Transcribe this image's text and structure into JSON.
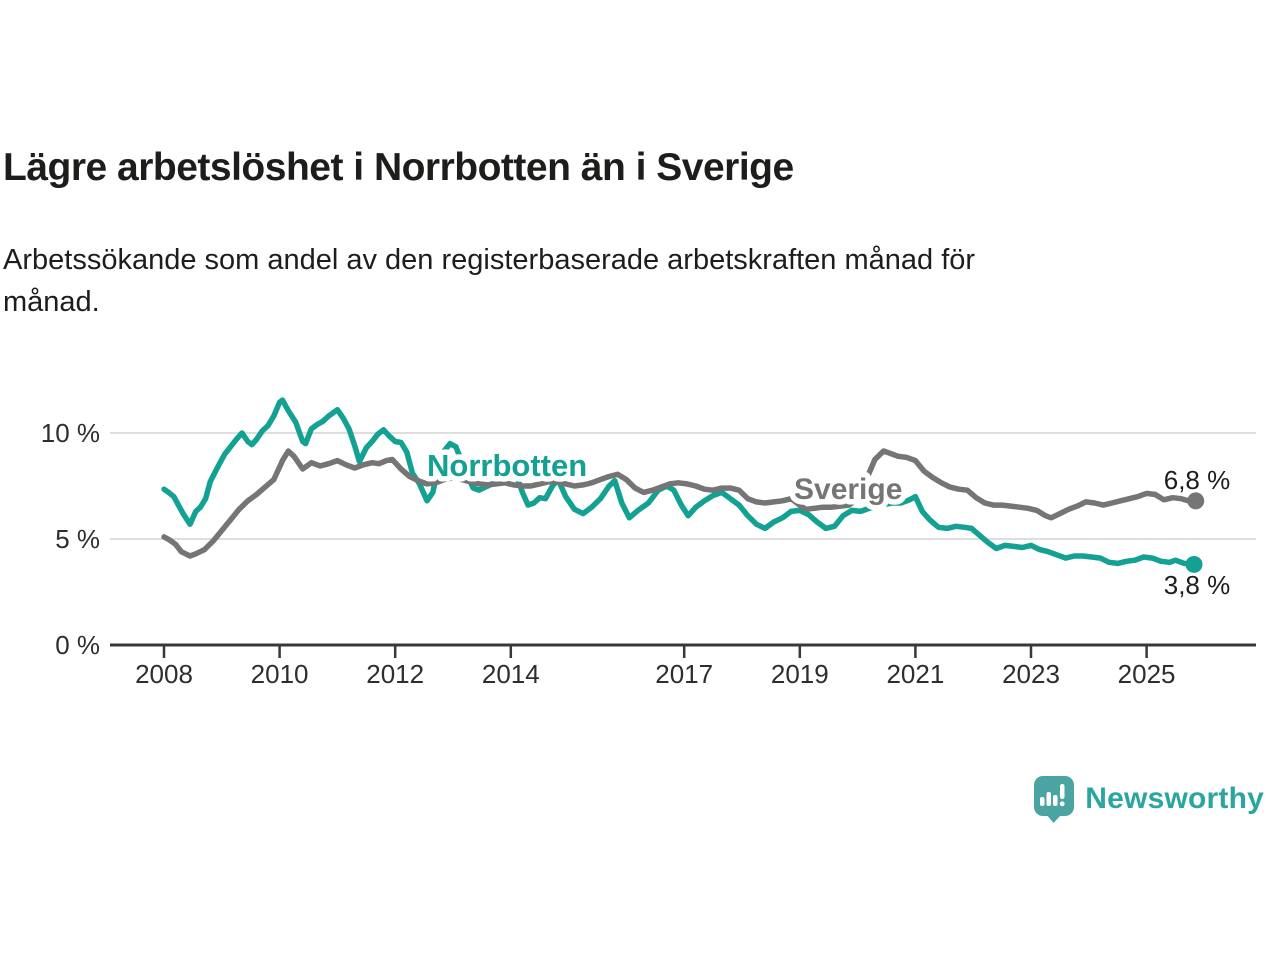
{
  "header": {
    "title": "Lägre arbetslöshet i Norrbotten än i Sverige",
    "subtitle": "Arbetssökande som andel av den registerbaserade arbetskraften månad för månad."
  },
  "chart_data": {
    "type": "line",
    "title": "Lägre arbetslöshet i Norrbotten än i Sverige",
    "subtitle": "Arbetssökande som andel av den registerbaserade arbetskraften månad för månad.",
    "unit": "%",
    "grid": true,
    "legend_position": "inline-labels-on-lines",
    "x_axis": {
      "range": [
        2007.85,
        2026.1
      ],
      "ticks": [
        {
          "value": 2008,
          "label": "2008"
        },
        {
          "value": 2010,
          "label": "2010"
        },
        {
          "value": 2012,
          "label": "2012"
        },
        {
          "value": 2014,
          "label": "2014"
        },
        {
          "value": 2017,
          "label": "2017"
        },
        {
          "value": 2019,
          "label": "2019"
        },
        {
          "value": 2021,
          "label": "2021"
        },
        {
          "value": 2023,
          "label": "2023"
        },
        {
          "value": 2025,
          "label": "2025"
        }
      ]
    },
    "y_axis": {
      "range": [
        0,
        12
      ],
      "ticks": [
        {
          "value": 0,
          "label": "0 %"
        },
        {
          "value": 5,
          "label": "5 %"
        },
        {
          "value": 10,
          "label": "10 %"
        }
      ]
    },
    "series": [
      {
        "name": "Norrbotten",
        "label": "Norrbotten",
        "color": "#12a192",
        "end_value_label": "3,8 %",
        "end_value": 3.8,
        "points": [
          [
            2008.0,
            7.35
          ],
          [
            2008.08,
            7.2
          ],
          [
            2008.17,
            7.0
          ],
          [
            2008.25,
            6.6
          ],
          [
            2008.33,
            6.2
          ],
          [
            2008.45,
            5.7
          ],
          [
            2008.55,
            6.3
          ],
          [
            2008.63,
            6.5
          ],
          [
            2008.72,
            6.9
          ],
          [
            2008.8,
            7.7
          ],
          [
            2008.95,
            8.5
          ],
          [
            2009.05,
            9.0
          ],
          [
            2009.15,
            9.35
          ],
          [
            2009.25,
            9.7
          ],
          [
            2009.35,
            10.0
          ],
          [
            2009.45,
            9.6
          ],
          [
            2009.52,
            9.45
          ],
          [
            2009.6,
            9.7
          ],
          [
            2009.7,
            10.1
          ],
          [
            2009.8,
            10.35
          ],
          [
            2009.9,
            10.8
          ],
          [
            2010.0,
            11.45
          ],
          [
            2010.05,
            11.55
          ],
          [
            2010.15,
            11.05
          ],
          [
            2010.28,
            10.5
          ],
          [
            2010.4,
            9.6
          ],
          [
            2010.45,
            9.5
          ],
          [
            2010.55,
            10.2
          ],
          [
            2010.65,
            10.4
          ],
          [
            2010.75,
            10.55
          ],
          [
            2010.85,
            10.8
          ],
          [
            2011.0,
            11.1
          ],
          [
            2011.1,
            10.7
          ],
          [
            2011.2,
            10.2
          ],
          [
            2011.3,
            9.4
          ],
          [
            2011.38,
            8.65
          ],
          [
            2011.5,
            9.3
          ],
          [
            2011.6,
            9.6
          ],
          [
            2011.7,
            9.95
          ],
          [
            2011.8,
            10.15
          ],
          [
            2011.9,
            9.85
          ],
          [
            2012.0,
            9.6
          ],
          [
            2012.1,
            9.55
          ],
          [
            2012.2,
            9.1
          ],
          [
            2012.3,
            8.1
          ],
          [
            2012.42,
            7.6
          ],
          [
            2012.55,
            6.8
          ],
          [
            2012.65,
            7.2
          ],
          [
            2012.8,
            9.0
          ],
          [
            2012.95,
            9.5
          ],
          [
            2013.05,
            9.35
          ],
          [
            2013.2,
            8.3
          ],
          [
            2013.35,
            7.4
          ],
          [
            2013.45,
            7.3
          ],
          [
            2013.6,
            7.5
          ],
          [
            2013.75,
            7.7
          ],
          [
            2013.9,
            7.9
          ],
          [
            2014.0,
            8.0
          ],
          [
            2014.12,
            7.85
          ],
          [
            2014.2,
            7.2
          ],
          [
            2014.3,
            6.6
          ],
          [
            2014.4,
            6.7
          ],
          [
            2014.5,
            6.95
          ],
          [
            2014.6,
            6.9
          ],
          [
            2014.72,
            7.5
          ],
          [
            2014.82,
            7.8
          ],
          [
            2014.95,
            7.0
          ],
          [
            2015.1,
            6.4
          ],
          [
            2015.25,
            6.2
          ],
          [
            2015.4,
            6.5
          ],
          [
            2015.55,
            6.9
          ],
          [
            2015.7,
            7.5
          ],
          [
            2015.8,
            7.75
          ],
          [
            2015.92,
            6.7
          ],
          [
            2016.05,
            6.0
          ],
          [
            2016.2,
            6.35
          ],
          [
            2016.38,
            6.7
          ],
          [
            2016.55,
            7.3
          ],
          [
            2016.7,
            7.5
          ],
          [
            2016.82,
            7.3
          ],
          [
            2016.95,
            6.6
          ],
          [
            2017.07,
            6.1
          ],
          [
            2017.2,
            6.5
          ],
          [
            2017.35,
            6.8
          ],
          [
            2017.5,
            7.05
          ],
          [
            2017.65,
            7.2
          ],
          [
            2017.8,
            6.9
          ],
          [
            2017.95,
            6.6
          ],
          [
            2018.1,
            6.1
          ],
          [
            2018.25,
            5.7
          ],
          [
            2018.4,
            5.5
          ],
          [
            2018.55,
            5.8
          ],
          [
            2018.7,
            6.0
          ],
          [
            2018.85,
            6.3
          ],
          [
            2019.0,
            6.35
          ],
          [
            2019.15,
            6.15
          ],
          [
            2019.3,
            5.8
          ],
          [
            2019.45,
            5.5
          ],
          [
            2019.6,
            5.6
          ],
          [
            2019.75,
            6.1
          ],
          [
            2019.9,
            6.35
          ],
          [
            2020.05,
            6.3
          ],
          [
            2020.2,
            6.45
          ],
          [
            2020.4,
            6.6
          ],
          [
            2020.6,
            6.7
          ],
          [
            2020.75,
            6.7
          ],
          [
            2020.9,
            6.85
          ],
          [
            2021.0,
            7.0
          ],
          [
            2021.12,
            6.3
          ],
          [
            2021.25,
            5.9
          ],
          [
            2021.4,
            5.55
          ],
          [
            2021.55,
            5.5
          ],
          [
            2021.7,
            5.6
          ],
          [
            2021.85,
            5.55
          ],
          [
            2021.97,
            5.5
          ],
          [
            2022.1,
            5.2
          ],
          [
            2022.25,
            4.85
          ],
          [
            2022.4,
            4.55
          ],
          [
            2022.55,
            4.7
          ],
          [
            2022.7,
            4.65
          ],
          [
            2022.85,
            4.6
          ],
          [
            2023.0,
            4.7
          ],
          [
            2023.15,
            4.5
          ],
          [
            2023.3,
            4.4
          ],
          [
            2023.45,
            4.25
          ],
          [
            2023.6,
            4.1
          ],
          [
            2023.75,
            4.2
          ],
          [
            2023.9,
            4.2
          ],
          [
            2024.05,
            4.15
          ],
          [
            2024.2,
            4.1
          ],
          [
            2024.35,
            3.9
          ],
          [
            2024.5,
            3.85
          ],
          [
            2024.65,
            3.95
          ],
          [
            2024.8,
            4.0
          ],
          [
            2024.95,
            4.15
          ],
          [
            2025.1,
            4.1
          ],
          [
            2025.25,
            3.95
          ],
          [
            2025.4,
            3.9
          ],
          [
            2025.5,
            4.0
          ],
          [
            2025.65,
            3.85
          ],
          [
            2025.82,
            3.8
          ]
        ]
      },
      {
        "name": "Sverige",
        "label": "Sverige",
        "color": "#757575",
        "end_value_label": "6,8 %",
        "end_value": 6.8,
        "points": [
          [
            2008.0,
            5.1
          ],
          [
            2008.1,
            4.95
          ],
          [
            2008.2,
            4.75
          ],
          [
            2008.3,
            4.4
          ],
          [
            2008.45,
            4.2
          ],
          [
            2008.55,
            4.3
          ],
          [
            2008.7,
            4.5
          ],
          [
            2008.85,
            4.9
          ],
          [
            2009.0,
            5.4
          ],
          [
            2009.15,
            5.9
          ],
          [
            2009.3,
            6.4
          ],
          [
            2009.45,
            6.8
          ],
          [
            2009.6,
            7.1
          ],
          [
            2009.75,
            7.45
          ],
          [
            2009.9,
            7.8
          ],
          [
            2010.05,
            8.7
          ],
          [
            2010.15,
            9.15
          ],
          [
            2010.25,
            8.9
          ],
          [
            2010.4,
            8.3
          ],
          [
            2010.55,
            8.6
          ],
          [
            2010.7,
            8.45
          ],
          [
            2010.85,
            8.55
          ],
          [
            2011.0,
            8.7
          ],
          [
            2011.15,
            8.5
          ],
          [
            2011.3,
            8.35
          ],
          [
            2011.45,
            8.5
          ],
          [
            2011.6,
            8.6
          ],
          [
            2011.72,
            8.55
          ],
          [
            2011.85,
            8.7
          ],
          [
            2011.95,
            8.75
          ],
          [
            2012.1,
            8.3
          ],
          [
            2012.25,
            7.95
          ],
          [
            2012.4,
            7.75
          ],
          [
            2012.55,
            7.6
          ],
          [
            2012.7,
            7.65
          ],
          [
            2012.85,
            7.8
          ],
          [
            2013.0,
            7.9
          ],
          [
            2013.15,
            7.8
          ],
          [
            2013.3,
            7.7
          ],
          [
            2013.45,
            7.6
          ],
          [
            2013.6,
            7.55
          ],
          [
            2013.75,
            7.6
          ],
          [
            2013.9,
            7.65
          ],
          [
            2014.05,
            7.55
          ],
          [
            2014.2,
            7.5
          ],
          [
            2014.35,
            7.5
          ],
          [
            2014.5,
            7.6
          ],
          [
            2014.65,
            7.7
          ],
          [
            2014.8,
            7.7
          ],
          [
            2014.95,
            7.6
          ],
          [
            2015.1,
            7.5
          ],
          [
            2015.25,
            7.55
          ],
          [
            2015.4,
            7.65
          ],
          [
            2015.55,
            7.8
          ],
          [
            2015.7,
            7.95
          ],
          [
            2015.85,
            8.05
          ],
          [
            2016.0,
            7.8
          ],
          [
            2016.15,
            7.4
          ],
          [
            2016.3,
            7.2
          ],
          [
            2016.45,
            7.3
          ],
          [
            2016.6,
            7.45
          ],
          [
            2016.75,
            7.6
          ],
          [
            2016.9,
            7.65
          ],
          [
            2017.05,
            7.6
          ],
          [
            2017.2,
            7.5
          ],
          [
            2017.35,
            7.35
          ],
          [
            2017.5,
            7.3
          ],
          [
            2017.65,
            7.4
          ],
          [
            2017.8,
            7.4
          ],
          [
            2017.95,
            7.3
          ],
          [
            2018.1,
            6.9
          ],
          [
            2018.25,
            6.75
          ],
          [
            2018.4,
            6.7
          ],
          [
            2018.55,
            6.75
          ],
          [
            2018.7,
            6.8
          ],
          [
            2018.85,
            6.9
          ],
          [
            2019.0,
            6.6
          ],
          [
            2019.1,
            6.4
          ],
          [
            2019.25,
            6.45
          ],
          [
            2019.4,
            6.5
          ],
          [
            2019.55,
            6.5
          ],
          [
            2019.7,
            6.55
          ],
          [
            2019.85,
            6.6
          ],
          [
            2020.0,
            6.9
          ],
          [
            2020.15,
            7.8
          ],
          [
            2020.3,
            8.75
          ],
          [
            2020.45,
            9.15
          ],
          [
            2020.55,
            9.05
          ],
          [
            2020.7,
            8.9
          ],
          [
            2020.85,
            8.85
          ],
          [
            2021.0,
            8.7
          ],
          [
            2021.15,
            8.2
          ],
          [
            2021.3,
            7.9
          ],
          [
            2021.45,
            7.65
          ],
          [
            2021.6,
            7.45
          ],
          [
            2021.75,
            7.35
          ],
          [
            2021.9,
            7.3
          ],
          [
            2022.05,
            6.95
          ],
          [
            2022.2,
            6.7
          ],
          [
            2022.35,
            6.6
          ],
          [
            2022.5,
            6.6
          ],
          [
            2022.65,
            6.55
          ],
          [
            2022.8,
            6.5
          ],
          [
            2022.95,
            6.45
          ],
          [
            2023.1,
            6.35
          ],
          [
            2023.25,
            6.1
          ],
          [
            2023.35,
            6.0
          ],
          [
            2023.5,
            6.2
          ],
          [
            2023.65,
            6.4
          ],
          [
            2023.8,
            6.55
          ],
          [
            2023.95,
            6.75
          ],
          [
            2024.1,
            6.7
          ],
          [
            2024.25,
            6.6
          ],
          [
            2024.4,
            6.7
          ],
          [
            2024.55,
            6.8
          ],
          [
            2024.7,
            6.9
          ],
          [
            2024.85,
            7.0
          ],
          [
            2025.0,
            7.15
          ],
          [
            2025.15,
            7.1
          ],
          [
            2025.3,
            6.85
          ],
          [
            2025.45,
            6.95
          ],
          [
            2025.6,
            6.9
          ],
          [
            2025.72,
            6.8
          ],
          [
            2025.85,
            6.8
          ]
        ]
      }
    ]
  },
  "branding": {
    "logo_text": "Newsworthy",
    "icon": "newsworthy-speech-bubble-bar-chart-icon",
    "icon_color": "#4aa4a2",
    "text_color": "#2ba59f"
  }
}
